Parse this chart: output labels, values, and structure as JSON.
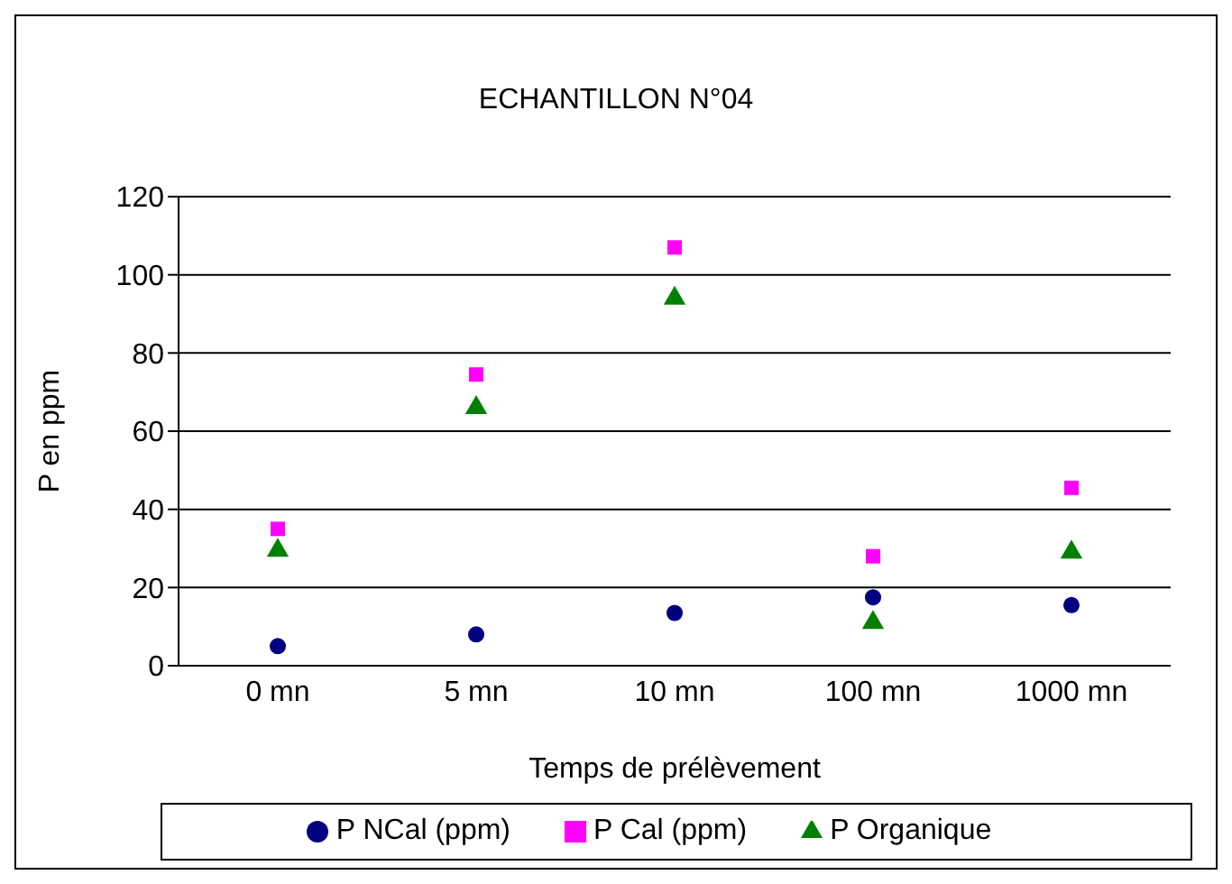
{
  "chart_data": {
    "type": "scatter",
    "title": "ECHANTILLON N°04",
    "xlabel": "Temps de prélèvement",
    "ylabel": "P en ppm",
    "categories": [
      "0 mn",
      "5 mn",
      "10 mn",
      "100 mn",
      "1000 mn"
    ],
    "series": [
      {
        "name": "P NCal (ppm)",
        "color": "#000080",
        "marker": "circle",
        "values": [
          5,
          8,
          13.5,
          17.5,
          15.5
        ]
      },
      {
        "name": "P Cal (ppm)",
        "color": "#ff00ff",
        "marker": "square",
        "values": [
          35,
          74.5,
          107,
          28,
          45.5
        ]
      },
      {
        "name": "P Organique",
        "color": "#008000",
        "marker": "triangle",
        "values": [
          29.5,
          66,
          94,
          11,
          29
        ]
      }
    ],
    "ylim": [
      0,
      120
    ],
    "yticks": [
      0,
      20,
      40,
      60,
      80,
      100,
      120
    ],
    "grid": "y",
    "legend": "bottom"
  }
}
